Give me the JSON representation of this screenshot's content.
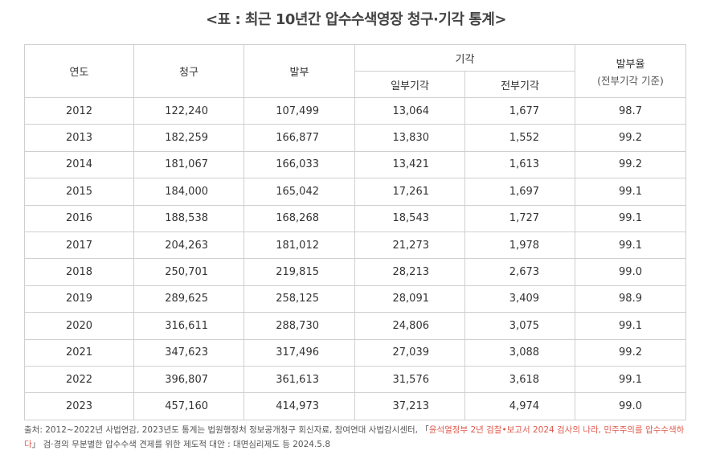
{
  "title": "<표 : 최근 10년간 압수수색영장 청구·기각 통계>",
  "table": {
    "header": {
      "year": "연도",
      "request": "청구",
      "issued": "발부",
      "rejected": "기각",
      "partial": "일부기각",
      "full": "전부기각",
      "rate": "발부율",
      "rate_note": "(전부기각 기준)"
    },
    "rows": [
      [
        "2012",
        "122,240",
        "107,499",
        "13,064",
        "1,677",
        "98.7"
      ],
      [
        "2013",
        "182,259",
        "166,877",
        "13,830",
        "1,552",
        "99.2"
      ],
      [
        "2014",
        "181,067",
        "166,033",
        "13,421",
        "1,613",
        "99.2"
      ],
      [
        "2015",
        "184,000",
        "165,042",
        "17,261",
        "1,697",
        "99.1"
      ],
      [
        "2016",
        "188,538",
        "168,268",
        "18,543",
        "1,727",
        "99.1"
      ],
      [
        "2017",
        "204,263",
        "181,012",
        "21,273",
        "1,978",
        "99.1"
      ],
      [
        "2018",
        "250,701",
        "219,815",
        "28,213",
        "2,673",
        "99.0"
      ],
      [
        "2019",
        "289,625",
        "258,125",
        "28,091",
        "3,409",
        "98.9"
      ],
      [
        "2020",
        "316,611",
        "288,730",
        "24,806",
        "3,075",
        "99.1"
      ],
      [
        "2021",
        "347,623",
        "317,496",
        "27,039",
        "3,088",
        "99.2"
      ],
      [
        "2022",
        "396,807",
        "361,613",
        "31,576",
        "3,618",
        "99.1"
      ],
      [
        "2023",
        "457,160",
        "414,973",
        "37,213",
        "4,974",
        "99.0"
      ]
    ]
  },
  "source": {
    "before": "출처: 2012~2022년 사법연감, 2023년도 통계는 법원행정처 정보공개청구 회신자료, 참여연대 사법감시센터, 「",
    "highlight": "윤석열정부 2년 검찰•보고서 2024 검사의 나라, 민주주의를 압수수색하다",
    "after": "」 검·경의 무분별한 압수수색 견제를 위한 제도적 대안 : 대면심리제도 등 2024.5.8"
  }
}
